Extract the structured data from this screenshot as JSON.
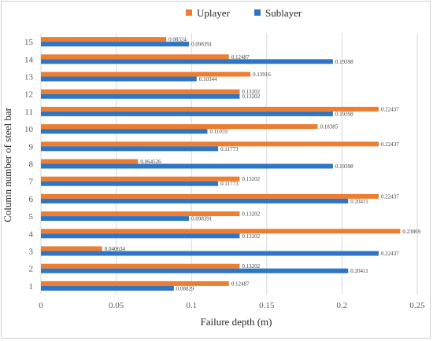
{
  "chart_data": {
    "type": "bar",
    "orientation": "horizontal",
    "title": "",
    "xlabel": "Failure depth (m)",
    "ylabel": "Column number of steel bar",
    "xlim": [
      0,
      0.25
    ],
    "x_ticks": [
      "0",
      "0.05",
      "0.1",
      "0.15",
      "0.2",
      "0.25"
    ],
    "x_tick_values": [
      0,
      0.05,
      0.1,
      0.15,
      0.2,
      0.25
    ],
    "categories": [
      "1",
      "2",
      "3",
      "4",
      "5",
      "6",
      "7",
      "8",
      "9",
      "10",
      "11",
      "12",
      "13",
      "14",
      "15"
    ],
    "grid": "vertical",
    "legend_position": "top",
    "series": [
      {
        "name": "Uplayer",
        "color": "#ED7D31",
        "values": [
          0.12487,
          0.13202,
          0.040634,
          0.23869,
          0.13202,
          0.22437,
          0.13202,
          0.064526,
          0.22437,
          0.18385,
          0.22437,
          0.13202,
          0.13916,
          0.12487,
          0.08324
        ],
        "labels": [
          "0.12487",
          "0.13202",
          "0.040634",
          "0.23869",
          "0.13202",
          "0.22437",
          "0.13202",
          "0.064526",
          "0.22437",
          "0.18385",
          "0.22437",
          "0.13202",
          "0.13916",
          "0.12487",
          "0.08324"
        ]
      },
      {
        "name": "Sublayer",
        "color": "#2E75C5",
        "values": [
          0.08829,
          0.20411,
          0.22437,
          0.13202,
          0.098391,
          0.20411,
          0.11773,
          0.19398,
          0.11773,
          0.11059,
          0.19398,
          0.13202,
          0.10344,
          0.19398,
          0.098391
        ],
        "labels": [
          "0.08829",
          "0.20411",
          "0.22437",
          "0.13202",
          "0.098391",
          "0.20411",
          "0.11773",
          "0.19398",
          "0.11773",
          "0.11059",
          "0.19398",
          "0.13202",
          "0.10344",
          "0.19398",
          "0.098391"
        ]
      }
    ]
  }
}
